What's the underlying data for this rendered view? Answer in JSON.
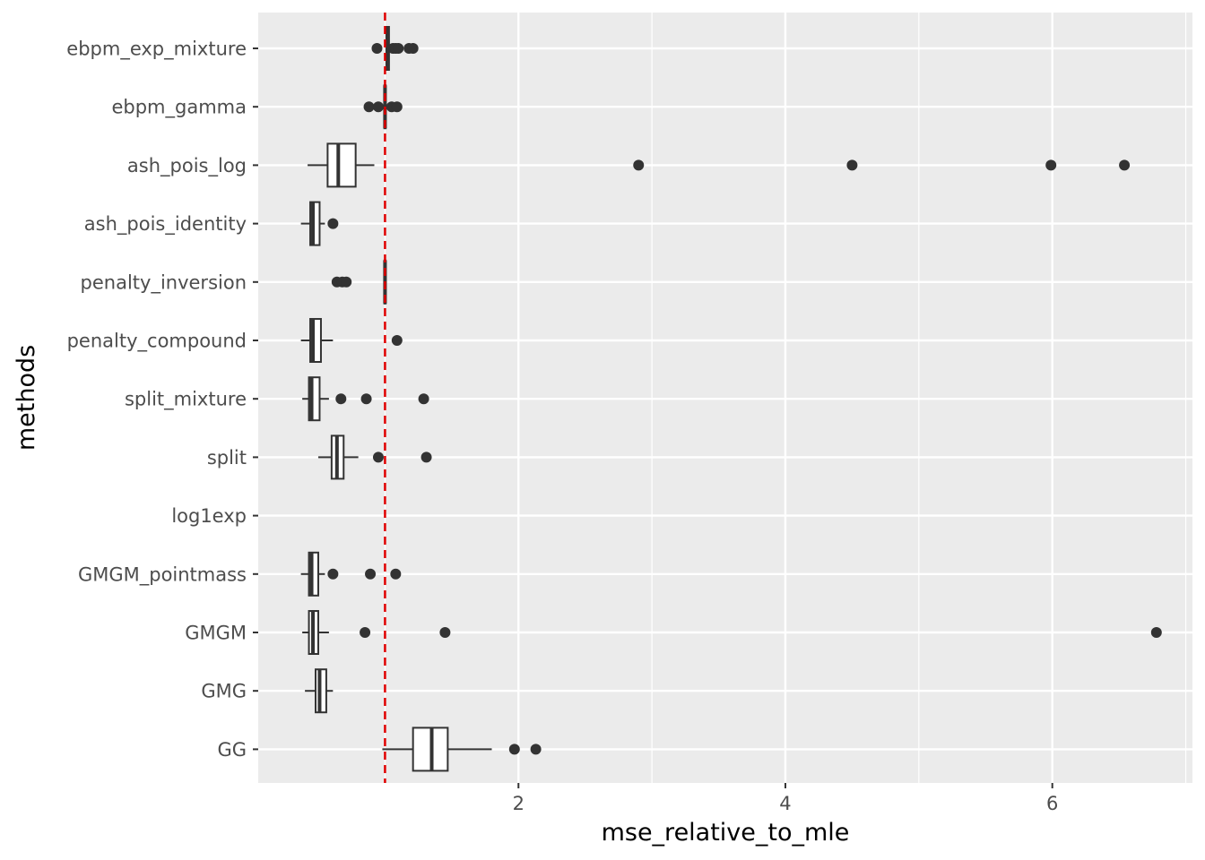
{
  "chart_data": {
    "type": "boxplot",
    "orientation": "horizontal",
    "xlabel": "mse_relative_to_mle",
    "ylabel": "methods",
    "x_ticks": [
      2,
      4,
      6
    ],
    "xlim": [
      0.05,
      7.05
    ],
    "grid": true,
    "reference_line": {
      "x": 1.0,
      "color": "#e00000",
      "style": "dashed"
    },
    "categories": [
      "ebpm_exp_mixture",
      "ebpm_gamma",
      "ash_pois_log",
      "ash_pois_identity",
      "penalty_inversion",
      "penalty_compound",
      "split_mixture",
      "split",
      "log1exp",
      "GMGM_pointmass",
      "GMGM",
      "GMG",
      "GG"
    ],
    "boxes": [
      {
        "method": "ebpm_exp_mixture",
        "whisker_low": 1.01,
        "q1": 1.01,
        "median": 1.02,
        "q3": 1.03,
        "whisker_high": 1.03,
        "outliers": [
          0.94,
          1.06,
          1.08,
          1.1,
          1.18,
          1.21
        ]
      },
      {
        "method": "ebpm_gamma",
        "whisker_low": 0.99,
        "q1": 0.995,
        "median": 1.0,
        "q3": 1.005,
        "whisker_high": 1.01,
        "outliers": [
          0.88,
          0.95,
          1.05,
          1.09
        ]
      },
      {
        "method": "ash_pois_log",
        "whisker_low": 0.42,
        "q1": 0.57,
        "median": 0.65,
        "q3": 0.78,
        "whisker_high": 0.92,
        "outliers": [
          2.9,
          4.5,
          5.99,
          6.54
        ]
      },
      {
        "method": "ash_pois_identity",
        "whisker_low": 0.37,
        "q1": 0.44,
        "median": 0.46,
        "q3": 0.51,
        "whisker_high": 0.55,
        "outliers": [
          0.61
        ]
      },
      {
        "method": "penalty_inversion",
        "whisker_low": 0.99,
        "q1": 0.995,
        "median": 1.0,
        "q3": 1.005,
        "whisker_high": 1.01,
        "outliers": [
          0.64,
          0.68,
          0.71
        ]
      },
      {
        "method": "penalty_compound",
        "whisker_low": 0.37,
        "q1": 0.44,
        "median": 0.46,
        "q3": 0.52,
        "whisker_high": 0.61,
        "outliers": [
          1.09
        ]
      },
      {
        "method": "split_mixture",
        "whisker_low": 0.38,
        "q1": 0.43,
        "median": 0.45,
        "q3": 0.51,
        "whisker_high": 0.58,
        "outliers": [
          0.67,
          0.86,
          1.29
        ]
      },
      {
        "method": "split",
        "whisker_low": 0.5,
        "q1": 0.6,
        "median": 0.64,
        "q3": 0.69,
        "whisker_high": 0.8,
        "outliers": [
          0.95,
          1.31
        ]
      },
      {
        "method": "log1exp",
        "whisker_low": null,
        "q1": null,
        "median": null,
        "q3": null,
        "whisker_high": null,
        "outliers": []
      },
      {
        "method": "GMGM_pointmass",
        "whisker_low": 0.37,
        "q1": 0.43,
        "median": 0.45,
        "q3": 0.5,
        "whisker_high": 0.55,
        "outliers": [
          0.61,
          0.89,
          1.08
        ]
      },
      {
        "method": "GMGM",
        "whisker_low": 0.38,
        "q1": 0.43,
        "median": 0.46,
        "q3": 0.5,
        "whisker_high": 0.58,
        "outliers": [
          0.85,
          1.45,
          6.78
        ]
      },
      {
        "method": "GMG",
        "whisker_low": 0.4,
        "q1": 0.48,
        "median": 0.51,
        "q3": 0.56,
        "whisker_high": 0.61,
        "outliers": []
      },
      {
        "method": "GG",
        "whisker_low": 0.98,
        "q1": 1.21,
        "median": 1.35,
        "q3": 1.47,
        "whisker_high": 1.8,
        "outliers": [
          1.97,
          2.13
        ]
      }
    ]
  }
}
